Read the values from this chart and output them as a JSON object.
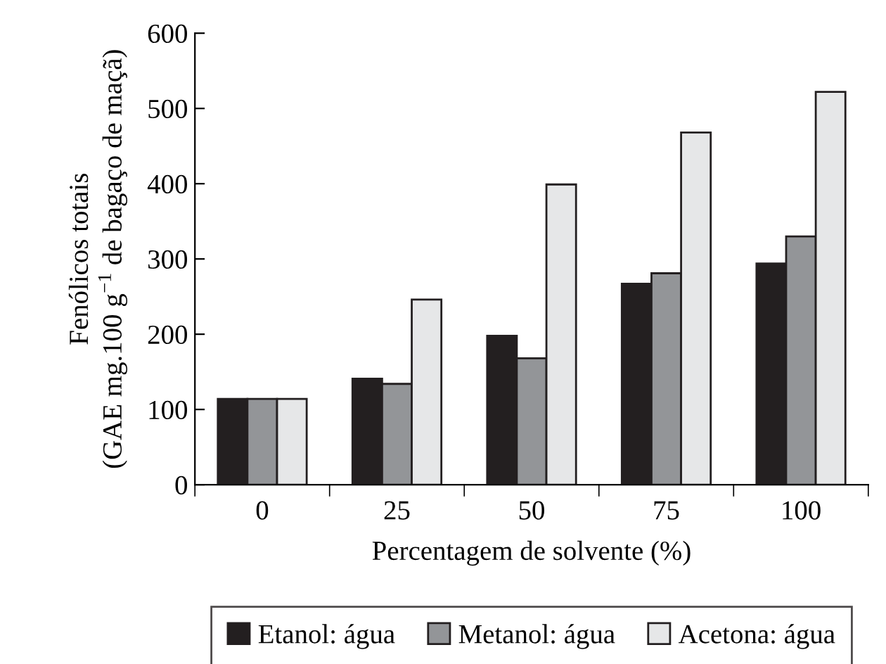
{
  "chart_data": {
    "type": "bar",
    "xlabel": "Percentagem de solvente (%)",
    "ylabel": "Fenólicos totais\n(GAE mg.100 g$^{−1}$ de bagaço de maçã)",
    "categories": [
      "0",
      "25",
      "50",
      "75",
      "100"
    ],
    "series": [
      {
        "name": "Etanol: água",
        "color": "#231f20",
        "values": [
          114,
          141,
          198,
          267,
          294
        ]
      },
      {
        "name": "Metanol: água",
        "color": "#939598",
        "values": [
          114,
          134,
          168,
          281,
          330
        ]
      },
      {
        "name": "Acetona: água",
        "color": "#e6e7e8",
        "values": [
          114,
          246,
          399,
          468,
          522
        ]
      }
    ],
    "ylim": [
      0,
      600
    ],
    "yticks": [
      0,
      100,
      200,
      300,
      400,
      500,
      600
    ],
    "grid": false,
    "legend": "bottom"
  }
}
